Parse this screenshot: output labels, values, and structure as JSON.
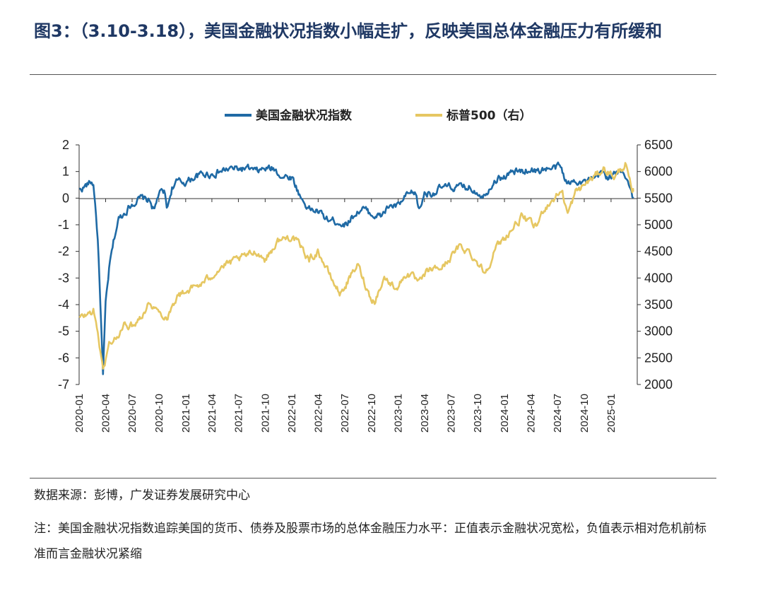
{
  "header": {
    "title": "图3：（3.10-3.18），美国金融状况指数小幅走扩，反映美国总体金融压力有所缓和"
  },
  "footer": {
    "source": "数据来源：彭博，广发证券发展研究中心",
    "note": "注：美国金融状况指数追踪美国的货币、债券及股票市场的总体金融压力水平：正值表示金融状况宽松，负值表示相对危机前标准而言金融状况紧缩"
  },
  "colors": {
    "fci": "#1f6aa5",
    "spx": "#e6c762",
    "axis": "#333333"
  },
  "chart_data": {
    "type": "line",
    "title": "",
    "xlabel": "",
    "ylabel": "",
    "legend_position": "top-center",
    "grid": false,
    "x_tick_labels": [
      "2020-01",
      "2020-04",
      "2020-07",
      "2020-10",
      "2021-01",
      "2021-04",
      "2021-07",
      "2021-10",
      "2022-01",
      "2022-04",
      "2022-07",
      "2022-10",
      "2023-01",
      "2023-04",
      "2023-07",
      "2023-10",
      "2024-01",
      "2024-04",
      "2024-07",
      "2024-10",
      "2025-01"
    ],
    "y_left_ticks": [
      "2",
      "1",
      "0",
      "-1",
      "-2",
      "-3",
      "-4",
      "-5",
      "-6",
      "-7"
    ],
    "y_right_ticks": [
      "6500",
      "6000",
      "5500",
      "5000",
      "4500",
      "4000",
      "3500",
      "3000",
      "2500",
      "2000"
    ],
    "y_left_range": [
      -7,
      2
    ],
    "y_right_range": [
      2000,
      6500
    ],
    "series": [
      {
        "name": "美国金融状况指数",
        "axis": "left",
        "x": [
          "2020-01-02",
          "2020-02-10",
          "2020-02-20",
          "2020-03-05",
          "2020-03-16",
          "2020-03-23",
          "2020-04-01",
          "2020-04-15",
          "2020-05-01",
          "2020-05-15",
          "2020-06-01",
          "2020-06-15",
          "2020-07-01",
          "2020-08-01",
          "2020-09-01",
          "2020-09-15",
          "2020-10-01",
          "2020-10-20",
          "2020-10-30",
          "2020-11-15",
          "2020-12-01",
          "2021-01-01",
          "2021-02-01",
          "2021-03-01",
          "2021-04-01",
          "2021-05-01",
          "2021-06-01",
          "2021-07-01",
          "2021-08-01",
          "2021-09-01",
          "2021-10-01",
          "2021-11-01",
          "2021-12-01",
          "2022-01-01",
          "2022-02-01",
          "2022-03-01",
          "2022-04-01",
          "2022-05-01",
          "2022-06-15",
          "2022-07-01",
          "2022-08-15",
          "2022-09-01",
          "2022-10-01",
          "2022-11-01",
          "2022-12-01",
          "2023-01-01",
          "2023-02-01",
          "2023-03-01",
          "2023-03-15",
          "2023-04-01",
          "2023-05-01",
          "2023-06-01",
          "2023-07-01",
          "2023-08-01",
          "2023-09-01",
          "2023-10-25",
          "2023-11-15",
          "2023-12-01",
          "2024-01-01",
          "2024-02-01",
          "2024-03-01",
          "2024-04-01",
          "2024-04-20",
          "2024-05-15",
          "2024-06-15",
          "2024-07-10",
          "2024-08-05",
          "2024-08-20",
          "2024-09-01",
          "2024-10-01",
          "2024-11-10",
          "2024-12-01",
          "2024-12-20",
          "2025-01-15",
          "2025-02-10",
          "2025-02-25",
          "2025-03-10",
          "2025-03-18"
        ],
        "values": [
          0.3,
          0.6,
          0.5,
          -1.5,
          -4.5,
          -6.7,
          -4.0,
          -2.5,
          -1.5,
          -0.8,
          -0.6,
          -0.4,
          -0.2,
          0.0,
          -0.1,
          -0.5,
          0.2,
          0.2,
          -0.4,
          0.4,
          0.6,
          0.6,
          0.8,
          0.9,
          0.9,
          1.0,
          1.1,
          1.1,
          1.1,
          1.0,
          1.1,
          1.1,
          0.8,
          0.8,
          0.0,
          -0.4,
          -0.5,
          -0.8,
          -0.9,
          -1.0,
          -0.5,
          -0.4,
          -0.6,
          -0.7,
          -0.3,
          -0.3,
          0.1,
          0.2,
          -0.5,
          0.2,
          0.2,
          0.4,
          0.4,
          0.4,
          0.4,
          0.1,
          0.5,
          0.7,
          0.8,
          1.0,
          1.0,
          1.1,
          1.0,
          1.1,
          1.1,
          1.2,
          0.5,
          0.6,
          0.7,
          0.6,
          0.7,
          1.0,
          0.8,
          0.9,
          1.0,
          0.8,
          0.3,
          0.0
        ]
      },
      {
        "name": "标普500（右）",
        "axis": "right",
        "x": [
          "2020-01-02",
          "2020-02-19",
          "2020-03-05",
          "2020-03-23",
          "2020-04-15",
          "2020-05-15",
          "2020-06-08",
          "2020-07-01",
          "2020-08-01",
          "2020-09-02",
          "2020-10-01",
          "2020-10-30",
          "2020-12-01",
          "2021-01-01",
          "2021-03-01",
          "2021-05-01",
          "2021-07-01",
          "2021-09-01",
          "2021-10-01",
          "2021-11-15",
          "2022-01-03",
          "2022-03-01",
          "2022-04-01",
          "2022-05-15",
          "2022-06-16",
          "2022-08-15",
          "2022-09-30",
          "2022-10-12",
          "2022-11-15",
          "2022-12-15",
          "2023-01-01",
          "2023-02-01",
          "2023-03-15",
          "2023-04-15",
          "2023-06-01",
          "2023-07-31",
          "2023-09-01",
          "2023-10-27",
          "2023-12-01",
          "2024-01-01",
          "2024-02-01",
          "2024-03-01",
          "2024-04-19",
          "2024-05-15",
          "2024-07-16",
          "2024-08-05",
          "2024-09-01",
          "2024-10-01",
          "2024-11-15",
          "2024-12-06",
          "2025-01-15",
          "2025-02-19",
          "2025-03-05",
          "2025-03-13",
          "2025-03-18"
        ],
        "values": [
          3240,
          3380,
          3000,
          2240,
          2800,
          2900,
          3150,
          3100,
          3300,
          3550,
          3350,
          3270,
          3650,
          3750,
          3900,
          4200,
          4350,
          4500,
          4350,
          4700,
          4790,
          4350,
          4500,
          4000,
          3700,
          4250,
          3600,
          3580,
          4000,
          3850,
          3850,
          4100,
          3900,
          4150,
          4200,
          4590,
          4500,
          4100,
          4550,
          4750,
          4950,
          5150,
          4950,
          5300,
          5650,
          5200,
          5600,
          5750,
          5950,
          6050,
          5900,
          6140,
          5850,
          5550,
          5620
        ]
      }
    ]
  }
}
